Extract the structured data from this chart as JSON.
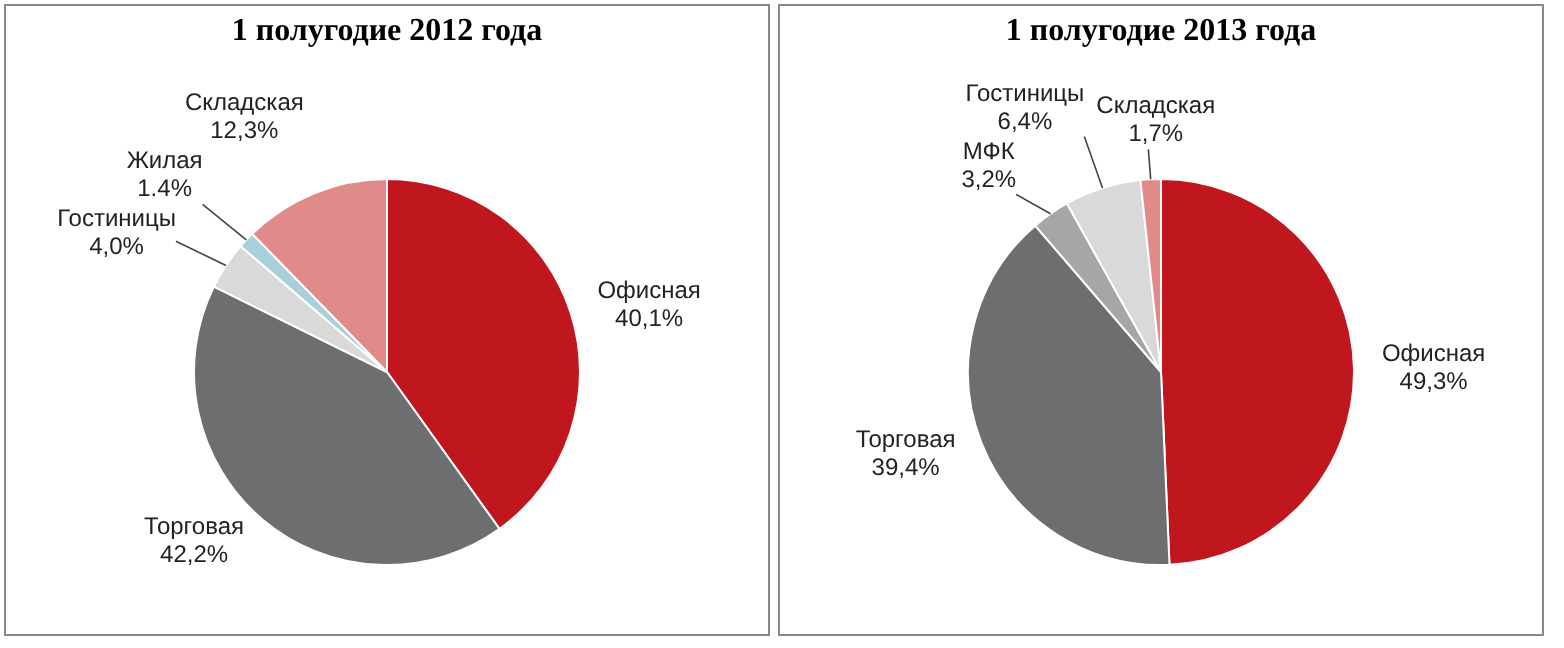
{
  "chart_data": [
    {
      "type": "pie",
      "title": "1 полугодие 2012 года",
      "categories": [
        "Офисная",
        "Торговая",
        "Гостиницы",
        "Жилая",
        "Складская"
      ],
      "values": [
        40.1,
        42.2,
        4.0,
        1.4,
        12.3
      ],
      "colors": [
        "#c0161e",
        "#6d6e70",
        "#d9d9d9",
        "#a9d0d8",
        "#e08a8a"
      ],
      "value_labels": [
        "40,1%",
        "42,2%",
        "4,0%",
        "1.4%",
        "12,3%"
      ]
    },
    {
      "type": "pie",
      "title": "1 полугодие 2013 года",
      "categories": [
        "Офисная",
        "Торговая",
        "МФК",
        "Гостиницы",
        "Складская"
      ],
      "values": [
        49.3,
        39.4,
        3.2,
        6.4,
        1.7
      ],
      "colors": [
        "#c0161e",
        "#6d6e70",
        "#a6a6a6",
        "#d9d9d9",
        "#e08a8a"
      ],
      "value_labels": [
        "49,3%",
        "39,4%",
        "3,2%",
        "6,4%",
        "1,7%"
      ]
    }
  ]
}
